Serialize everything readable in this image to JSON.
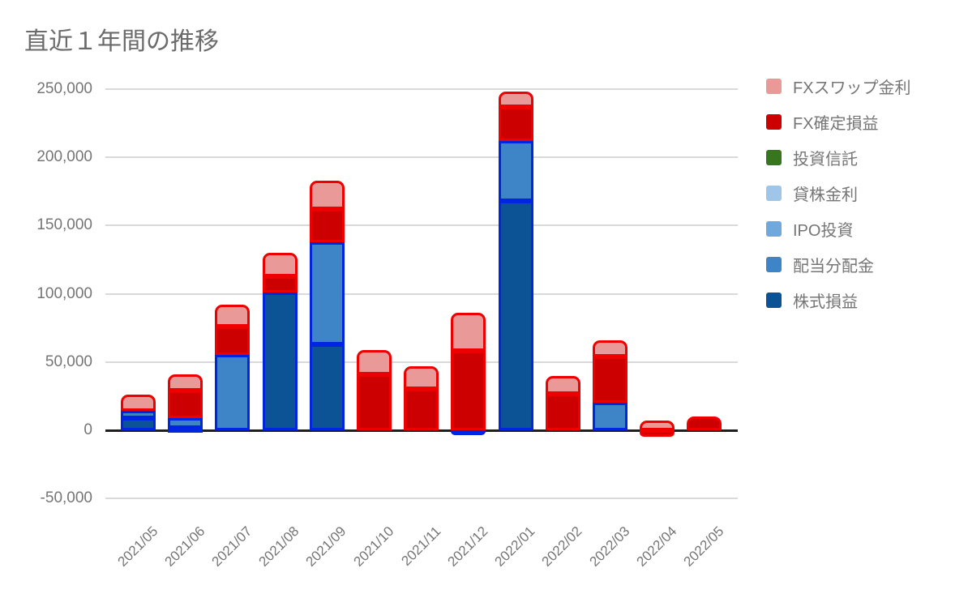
{
  "title": "直近１年間の推移",
  "chart_data": {
    "type": "bar",
    "stacked": true,
    "title": "直近１年間の推移",
    "categories": [
      "2021/05",
      "2021/06",
      "2021/07",
      "2021/08",
      "2021/09",
      "2021/10",
      "2021/11",
      "2021/12",
      "2022/01",
      "2022/02",
      "2022/03",
      "2022/04",
      "2022/05"
    ],
    "series": [
      {
        "name": "FXスワップ金利",
        "slug": "fx-swap-interest",
        "color": "#ea9999",
        "border": "#ee0000",
        "values": [
          12000,
          12000,
          16000,
          17000,
          21000,
          18000,
          17000,
          28000,
          11000,
          13000,
          12000,
          7000,
          0
        ]
      },
      {
        "name": "FX確定損益",
        "slug": "fx-realized-pl",
        "color": "#cc0000",
        "border": "#ee0000",
        "values": [
          0,
          20000,
          21000,
          12000,
          24000,
          41000,
          30000,
          58000,
          25000,
          27000,
          34000,
          -5000,
          10000
        ]
      },
      {
        "name": "投資信託",
        "slug": "investment-trust",
        "color": "#38761d",
        "border": "#38761d",
        "values": [
          0,
          0,
          0,
          0,
          0,
          0,
          0,
          0,
          0,
          0,
          0,
          0,
          0
        ]
      },
      {
        "name": "貸株金利",
        "slug": "stock-lending-interest",
        "color": "#9fc5e8",
        "border": "#9fc5e8",
        "values": [
          0,
          0,
          0,
          0,
          0,
          0,
          0,
          0,
          0,
          0,
          0,
          0,
          0
        ]
      },
      {
        "name": "IPO投資",
        "slug": "ipo-investment",
        "color": "#6fa8dc",
        "border": "#6fa8dc",
        "values": [
          0,
          0,
          0,
          0,
          0,
          0,
          0,
          0,
          0,
          0,
          0,
          0,
          0
        ]
      },
      {
        "name": "配当分配金",
        "slug": "dividend-distribution",
        "color": "#3d85c6",
        "border": "#0025e0",
        "values": [
          5000,
          7000,
          55000,
          0,
          75000,
          0,
          0,
          0,
          44000,
          0,
          20000,
          0,
          0
        ]
      },
      {
        "name": "株式損益",
        "slug": "stock-pl",
        "color": "#0b5394",
        "border": "#0025e0",
        "values": [
          9000,
          2000,
          0,
          101000,
          63000,
          0,
          0,
          -2000,
          168000,
          0,
          0,
          0,
          0
        ]
      }
    ],
    "stack_order_bottom_to_top": [
      "株式損益",
      "配当分配金",
      "IPO投資",
      "貸株金利",
      "投資信託",
      "FX確定損益",
      "FXスワップ金利"
    ],
    "y_ticks": [
      {
        "value": 250000,
        "label": "250,000"
      },
      {
        "value": 200000,
        "label": "200,000"
      },
      {
        "value": 150000,
        "label": "150,000"
      },
      {
        "value": 100000,
        "label": "100,000"
      },
      {
        "value": 50000,
        "label": "50,000"
      },
      {
        "value": 0,
        "label": "0"
      },
      {
        "value": -50000,
        "label": "-50,000"
      }
    ],
    "ylim": [
      -50000,
      250000
    ],
    "grid": true,
    "legend_position": "right",
    "colors": {
      "grid": "#d9d9d9",
      "zero_line": "#1f1f1f",
      "text": "#757575"
    }
  }
}
